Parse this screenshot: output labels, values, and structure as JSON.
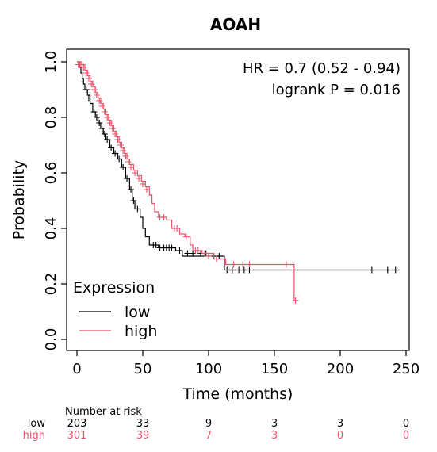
{
  "chart_data": {
    "type": "line",
    "title": "AOAH",
    "xlabel": "Time (months)",
    "ylabel": "Probability",
    "xlim": [
      0,
      250
    ],
    "ylim": [
      0,
      1
    ],
    "xticks": [
      "0",
      "50",
      "100",
      "150",
      "200",
      "250"
    ],
    "yticks": [
      "0.0",
      "0.2",
      "0.4",
      "0.6",
      "0.8",
      "1.0"
    ],
    "annotations": {
      "hr": "HR = 0.7 (0.52 - 0.94)",
      "logrank": "logrank P = 0.016"
    },
    "legend": {
      "title": "Expression",
      "placement": "bottom-left",
      "items": [
        {
          "label": "low",
          "color": "#000000"
        },
        {
          "label": "high",
          "color": "#E8546A"
        }
      ]
    },
    "series": [
      {
        "name": "low",
        "color": "#000000",
        "steps": [
          [
            0,
            1.0
          ],
          [
            2,
            0.98
          ],
          [
            3,
            0.96
          ],
          [
            4,
            0.94
          ],
          [
            5,
            0.92
          ],
          [
            6,
            0.9
          ],
          [
            8,
            0.88
          ],
          [
            10,
            0.85
          ],
          [
            12,
            0.82
          ],
          [
            14,
            0.8
          ],
          [
            16,
            0.78
          ],
          [
            18,
            0.76
          ],
          [
            20,
            0.74
          ],
          [
            22,
            0.72
          ],
          [
            25,
            0.69
          ],
          [
            28,
            0.67
          ],
          [
            31,
            0.65
          ],
          [
            34,
            0.62
          ],
          [
            37,
            0.58
          ],
          [
            40,
            0.54
          ],
          [
            42,
            0.5
          ],
          [
            44,
            0.47
          ],
          [
            48,
            0.44
          ],
          [
            50,
            0.4
          ],
          [
            52,
            0.37
          ],
          [
            55,
            0.34
          ],
          [
            62,
            0.33
          ],
          [
            75,
            0.32
          ],
          [
            80,
            0.3
          ],
          [
            112,
            0.25
          ],
          [
            245,
            0.25
          ]
        ],
        "censors": [
          [
            7,
            0.9
          ],
          [
            9,
            0.87
          ],
          [
            13,
            0.82
          ],
          [
            15,
            0.8
          ],
          [
            17,
            0.78
          ],
          [
            19,
            0.76
          ],
          [
            21,
            0.74
          ],
          [
            23,
            0.72
          ],
          [
            26,
            0.69
          ],
          [
            29,
            0.67
          ],
          [
            32,
            0.65
          ],
          [
            35,
            0.62
          ],
          [
            38,
            0.58
          ],
          [
            41,
            0.54
          ],
          [
            43,
            0.5
          ],
          [
            46,
            0.47
          ],
          [
            58,
            0.34
          ],
          [
            60,
            0.34
          ],
          [
            63,
            0.33
          ],
          [
            66,
            0.33
          ],
          [
            68,
            0.33
          ],
          [
            70,
            0.33
          ],
          [
            72,
            0.33
          ],
          [
            78,
            0.32
          ],
          [
            84,
            0.31
          ],
          [
            88,
            0.31
          ],
          [
            94,
            0.31
          ],
          [
            98,
            0.31
          ],
          [
            104,
            0.3
          ],
          [
            108,
            0.3
          ],
          [
            114,
            0.25
          ],
          [
            118,
            0.25
          ],
          [
            123,
            0.25
          ],
          [
            127,
            0.25
          ],
          [
            131,
            0.25
          ],
          [
            224,
            0.25
          ],
          [
            236,
            0.25
          ],
          [
            242,
            0.25
          ]
        ]
      },
      {
        "name": "high",
        "color": "#E8546A",
        "steps": [
          [
            0,
            1.0
          ],
          [
            4,
            0.99
          ],
          [
            6,
            0.97
          ],
          [
            8,
            0.95
          ],
          [
            10,
            0.93
          ],
          [
            12,
            0.91
          ],
          [
            14,
            0.89
          ],
          [
            16,
            0.87
          ],
          [
            18,
            0.85
          ],
          [
            20,
            0.83
          ],
          [
            22,
            0.81
          ],
          [
            24,
            0.79
          ],
          [
            26,
            0.77
          ],
          [
            28,
            0.75
          ],
          [
            30,
            0.73
          ],
          [
            32,
            0.71
          ],
          [
            34,
            0.69
          ],
          [
            36,
            0.67
          ],
          [
            38,
            0.65
          ],
          [
            40,
            0.63
          ],
          [
            43,
            0.61
          ],
          [
            46,
            0.59
          ],
          [
            49,
            0.57
          ],
          [
            52,
            0.55
          ],
          [
            55,
            0.52
          ],
          [
            57,
            0.49
          ],
          [
            59,
            0.46
          ],
          [
            62,
            0.44
          ],
          [
            68,
            0.43
          ],
          [
            72,
            0.4
          ],
          [
            78,
            0.38
          ],
          [
            82,
            0.37
          ],
          [
            86,
            0.34
          ],
          [
            88,
            0.32
          ],
          [
            95,
            0.31
          ],
          [
            104,
            0.29
          ],
          [
            113,
            0.27
          ],
          [
            165,
            0.27
          ],
          [
            165,
            0.14
          ],
          [
            168,
            0.14
          ]
        ],
        "censors": [
          [
            1,
            0.99
          ],
          [
            2,
            0.99
          ],
          [
            3,
            0.99
          ],
          [
            5,
            0.98
          ],
          [
            7,
            0.96
          ],
          [
            9,
            0.94
          ],
          [
            11,
            0.92
          ],
          [
            13,
            0.9
          ],
          [
            15,
            0.88
          ],
          [
            17,
            0.86
          ],
          [
            19,
            0.84
          ],
          [
            21,
            0.82
          ],
          [
            23,
            0.8
          ],
          [
            25,
            0.78
          ],
          [
            27,
            0.76
          ],
          [
            29,
            0.74
          ],
          [
            31,
            0.72
          ],
          [
            33,
            0.7
          ],
          [
            35,
            0.68
          ],
          [
            37,
            0.66
          ],
          [
            39,
            0.64
          ],
          [
            41,
            0.62
          ],
          [
            44,
            0.6
          ],
          [
            47,
            0.58
          ],
          [
            50,
            0.56
          ],
          [
            53,
            0.54
          ],
          [
            63,
            0.44
          ],
          [
            66,
            0.44
          ],
          [
            74,
            0.4
          ],
          [
            76,
            0.4
          ],
          [
            83,
            0.37
          ],
          [
            90,
            0.32
          ],
          [
            92,
            0.32
          ],
          [
            97,
            0.31
          ],
          [
            100,
            0.3
          ],
          [
            106,
            0.29
          ],
          [
            119,
            0.27
          ],
          [
            126,
            0.27
          ],
          [
            131,
            0.27
          ],
          [
            159,
            0.27
          ],
          [
            166,
            0.14
          ]
        ]
      }
    ],
    "risk_table": {
      "title": "Number at risk",
      "times": [
        0,
        50,
        100,
        150,
        200,
        250
      ],
      "rows": [
        {
          "label": "low",
          "color": "#000000",
          "values": [
            "203",
            "33",
            "9",
            "3",
            "3",
            "0"
          ]
        },
        {
          "label": "high",
          "color": "#E8546A",
          "values": [
            "301",
            "39",
            "7",
            "3",
            "0",
            "0"
          ]
        }
      ]
    }
  }
}
